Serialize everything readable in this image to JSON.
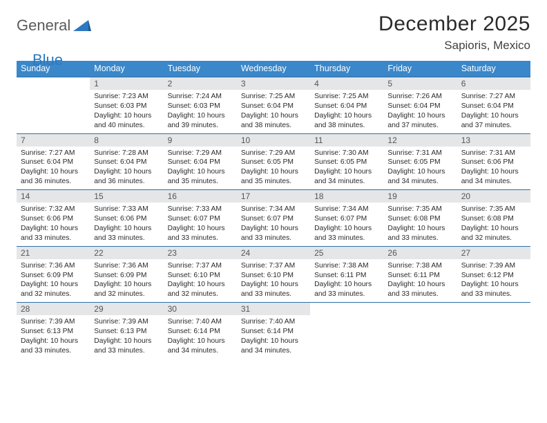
{
  "logo": {
    "part1": "General",
    "part2": "Blue"
  },
  "title": "December 2025",
  "location": "Sapioris, Mexico",
  "colors": {
    "header_bg": "#3a87c9",
    "header_text": "#ffffff",
    "daynum_bg": "#e4e6e8",
    "row_border": "#2e6fa8",
    "logo_gray": "#5a5a5a",
    "logo_blue": "#2e78c0",
    "text": "#2a2a2a"
  },
  "weekdays": [
    "Sunday",
    "Monday",
    "Tuesday",
    "Wednesday",
    "Thursday",
    "Friday",
    "Saturday"
  ],
  "weeks": [
    [
      null,
      {
        "n": "1",
        "sr": "7:23 AM",
        "ss": "6:03 PM",
        "dl": "10 hours and 40 minutes."
      },
      {
        "n": "2",
        "sr": "7:24 AM",
        "ss": "6:03 PM",
        "dl": "10 hours and 39 minutes."
      },
      {
        "n": "3",
        "sr": "7:25 AM",
        "ss": "6:04 PM",
        "dl": "10 hours and 38 minutes."
      },
      {
        "n": "4",
        "sr": "7:25 AM",
        "ss": "6:04 PM",
        "dl": "10 hours and 38 minutes."
      },
      {
        "n": "5",
        "sr": "7:26 AM",
        "ss": "6:04 PM",
        "dl": "10 hours and 37 minutes."
      },
      {
        "n": "6",
        "sr": "7:27 AM",
        "ss": "6:04 PM",
        "dl": "10 hours and 37 minutes."
      }
    ],
    [
      {
        "n": "7",
        "sr": "7:27 AM",
        "ss": "6:04 PM",
        "dl": "10 hours and 36 minutes."
      },
      {
        "n": "8",
        "sr": "7:28 AM",
        "ss": "6:04 PM",
        "dl": "10 hours and 36 minutes."
      },
      {
        "n": "9",
        "sr": "7:29 AM",
        "ss": "6:04 PM",
        "dl": "10 hours and 35 minutes."
      },
      {
        "n": "10",
        "sr": "7:29 AM",
        "ss": "6:05 PM",
        "dl": "10 hours and 35 minutes."
      },
      {
        "n": "11",
        "sr": "7:30 AM",
        "ss": "6:05 PM",
        "dl": "10 hours and 34 minutes."
      },
      {
        "n": "12",
        "sr": "7:31 AM",
        "ss": "6:05 PM",
        "dl": "10 hours and 34 minutes."
      },
      {
        "n": "13",
        "sr": "7:31 AM",
        "ss": "6:06 PM",
        "dl": "10 hours and 34 minutes."
      }
    ],
    [
      {
        "n": "14",
        "sr": "7:32 AM",
        "ss": "6:06 PM",
        "dl": "10 hours and 33 minutes."
      },
      {
        "n": "15",
        "sr": "7:33 AM",
        "ss": "6:06 PM",
        "dl": "10 hours and 33 minutes."
      },
      {
        "n": "16",
        "sr": "7:33 AM",
        "ss": "6:07 PM",
        "dl": "10 hours and 33 minutes."
      },
      {
        "n": "17",
        "sr": "7:34 AM",
        "ss": "6:07 PM",
        "dl": "10 hours and 33 minutes."
      },
      {
        "n": "18",
        "sr": "7:34 AM",
        "ss": "6:07 PM",
        "dl": "10 hours and 33 minutes."
      },
      {
        "n": "19",
        "sr": "7:35 AM",
        "ss": "6:08 PM",
        "dl": "10 hours and 33 minutes."
      },
      {
        "n": "20",
        "sr": "7:35 AM",
        "ss": "6:08 PM",
        "dl": "10 hours and 32 minutes."
      }
    ],
    [
      {
        "n": "21",
        "sr": "7:36 AM",
        "ss": "6:09 PM",
        "dl": "10 hours and 32 minutes."
      },
      {
        "n": "22",
        "sr": "7:36 AM",
        "ss": "6:09 PM",
        "dl": "10 hours and 32 minutes."
      },
      {
        "n": "23",
        "sr": "7:37 AM",
        "ss": "6:10 PM",
        "dl": "10 hours and 32 minutes."
      },
      {
        "n": "24",
        "sr": "7:37 AM",
        "ss": "6:10 PM",
        "dl": "10 hours and 33 minutes."
      },
      {
        "n": "25",
        "sr": "7:38 AM",
        "ss": "6:11 PM",
        "dl": "10 hours and 33 minutes."
      },
      {
        "n": "26",
        "sr": "7:38 AM",
        "ss": "6:11 PM",
        "dl": "10 hours and 33 minutes."
      },
      {
        "n": "27",
        "sr": "7:39 AM",
        "ss": "6:12 PM",
        "dl": "10 hours and 33 minutes."
      }
    ],
    [
      {
        "n": "28",
        "sr": "7:39 AM",
        "ss": "6:13 PM",
        "dl": "10 hours and 33 minutes."
      },
      {
        "n": "29",
        "sr": "7:39 AM",
        "ss": "6:13 PM",
        "dl": "10 hours and 33 minutes."
      },
      {
        "n": "30",
        "sr": "7:40 AM",
        "ss": "6:14 PM",
        "dl": "10 hours and 34 minutes."
      },
      {
        "n": "31",
        "sr": "7:40 AM",
        "ss": "6:14 PM",
        "dl": "10 hours and 34 minutes."
      },
      null,
      null,
      null
    ]
  ],
  "labels": {
    "sunrise": "Sunrise:",
    "sunset": "Sunset:",
    "daylight": "Daylight:"
  }
}
